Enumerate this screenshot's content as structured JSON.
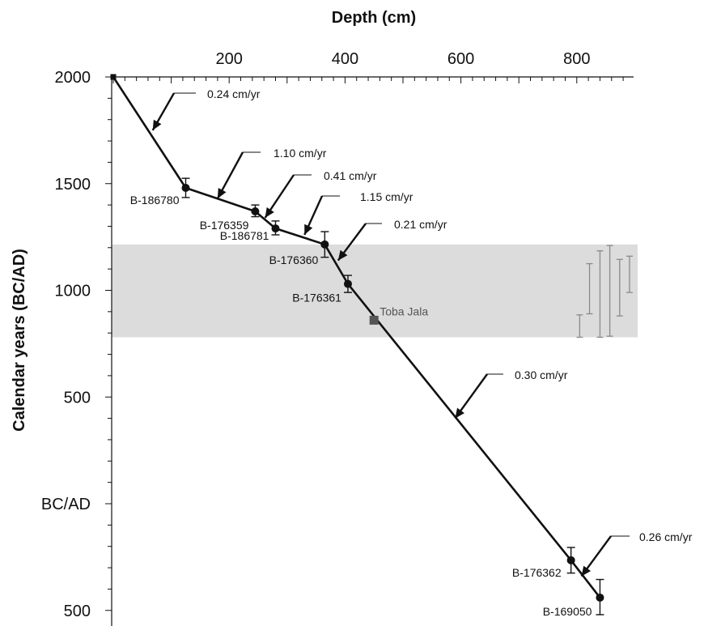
{
  "chart_data": {
    "type": "line",
    "title": "",
    "xlabel": "Depth (cm)",
    "ylabel": "Calendar years (BC/AD)",
    "x_ticks": [
      {
        "value": 200,
        "label": "200"
      },
      {
        "value": 400,
        "label": "400"
      },
      {
        "value": 600,
        "label": "600"
      },
      {
        "value": 800,
        "label": "800"
      }
    ],
    "y_ticks": [
      {
        "value": 2000,
        "label": "2000"
      },
      {
        "value": 1500,
        "label": "1500"
      },
      {
        "value": 1000,
        "label": "1000"
      },
      {
        "value": 500,
        "label": "500"
      },
      {
        "value": 0,
        "label": "BC/AD"
      },
      {
        "value": -500,
        "label": "500"
      }
    ],
    "xlim": [
      0,
      900
    ],
    "ylim": [
      -560,
      2000
    ],
    "shaded_band": {
      "y_min": 780,
      "y_max": 1215,
      "color": "#dcdcdc"
    },
    "age_model_line": [
      {
        "x": 0,
        "y": 2000
      },
      {
        "x": 125,
        "y": 1480
      },
      {
        "x": 245,
        "y": 1370
      },
      {
        "x": 280,
        "y": 1290
      },
      {
        "x": 365,
        "y": 1215
      },
      {
        "x": 405,
        "y": 1030
      },
      {
        "x": 790,
        "y": -265
      },
      {
        "x": 840,
        "y": -440
      }
    ],
    "dated_samples": [
      {
        "label": "B-186780",
        "x": 125,
        "y": 1480,
        "err_low": 1435,
        "err_high": 1525
      },
      {
        "label": "B-176359",
        "x": 245,
        "y": 1370,
        "err_low": 1345,
        "err_high": 1400
      },
      {
        "label": "B-186781",
        "x": 280,
        "y": 1290,
        "err_low": 1260,
        "err_high": 1325
      },
      {
        "label": "B-176360",
        "x": 365,
        "y": 1215,
        "err_low": 1155,
        "err_high": 1275
      },
      {
        "label": "B-176361",
        "x": 405,
        "y": 1030,
        "err_low": 990,
        "err_high": 1070
      },
      {
        "label": "B-176362",
        "x": 790,
        "y": -265,
        "err_low": -325,
        "err_high": -205
      },
      {
        "label": "B-169050",
        "x": 840,
        "y": -440,
        "err_low": -520,
        "err_high": -355
      }
    ],
    "top_marker": {
      "x": 0,
      "y": 2000
    },
    "toba_jala": {
      "label": "Toba Jala",
      "x": 450,
      "y": 860,
      "color": "#555555"
    },
    "growth_rates": [
      {
        "label": "0.24 cm/yr",
        "at_x": 68,
        "at_y": 1750
      },
      {
        "label": "1.10 cm/yr",
        "at_x": 180,
        "at_y": 1430
      },
      {
        "label": "0.41 cm/yr",
        "at_x": 262,
        "at_y": 1340
      },
      {
        "label": "1.15 cm/yr",
        "at_x": 330,
        "at_y": 1260
      },
      {
        "label": "0.21 cm/yr",
        "at_x": 388,
        "at_y": 1140
      },
      {
        "label": "0.30 cm/yr",
        "at_x": 590,
        "at_y": 400
      },
      {
        "label": "0.26 cm/yr",
        "at_x": 808,
        "at_y": -340
      }
    ],
    "comparison_ranges": [
      {
        "x": 805,
        "y_min": 780,
        "y_max": 885
      },
      {
        "x": 822,
        "y_min": 890,
        "y_max": 1125
      },
      {
        "x": 840,
        "y_min": 780,
        "y_max": 1185
      },
      {
        "x": 857,
        "y_min": 785,
        "y_max": 1210
      },
      {
        "x": 874,
        "y_min": 880,
        "y_max": 1145
      },
      {
        "x": 891,
        "y_min": 990,
        "y_max": 1160
      }
    ],
    "grid": false,
    "legend": "none"
  }
}
